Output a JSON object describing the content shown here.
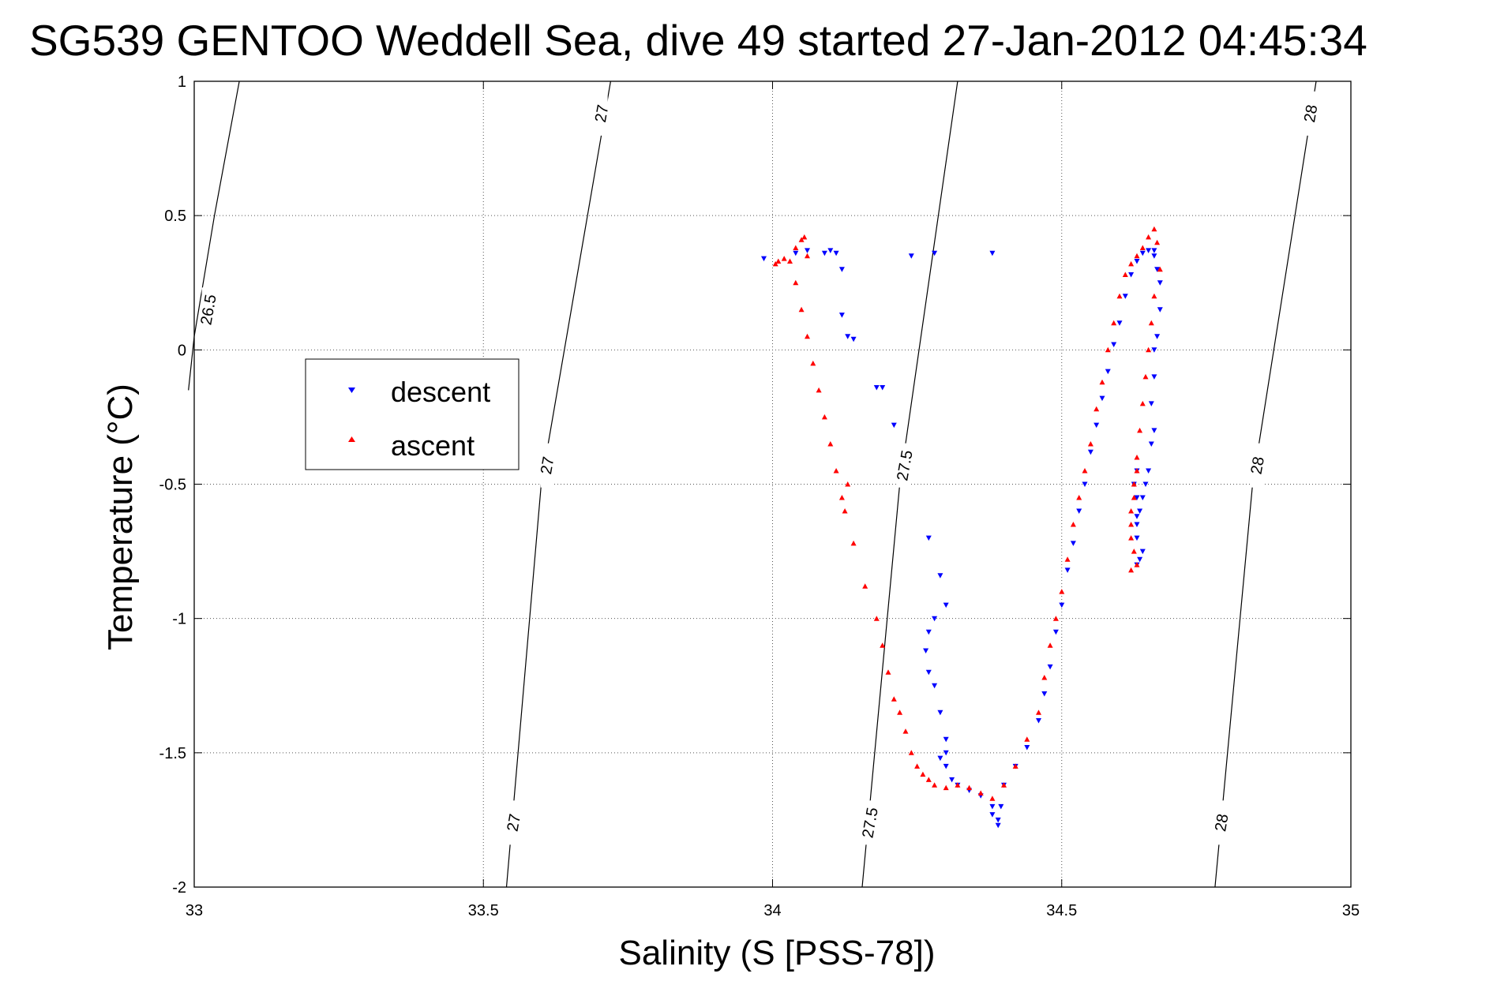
{
  "chart_data": {
    "type": "scatter",
    "title": "SG539 GENTOO Weddell Sea, dive 49 started 27-Jan-2012 04:45:34",
    "xlabel": "Salinity (S [PSS-78])",
    "ylabel": "Temperature (°C)",
    "xlim": [
      33,
      35
    ],
    "ylim": [
      -2,
      1
    ],
    "xticks": [
      33,
      33.5,
      34,
      34.5,
      35
    ],
    "yticks": [
      -2,
      -1.5,
      -1,
      -0.5,
      0,
      0.5,
      1
    ],
    "xtick_labels": [
      "33",
      "33.5",
      "34",
      "34.5",
      "35"
    ],
    "ytick_labels": [
      "-2",
      "-1.5",
      "-1",
      "-0.5",
      "0",
      "0.5",
      "1"
    ],
    "grid": true,
    "legend_position": "left-center",
    "contours": [
      {
        "label": "26.5",
        "points": [
          [
            33.078,
            1.0
          ],
          [
            33.035,
            0.5
          ],
          [
            33.0,
            0.05
          ],
          [
            32.99,
            -0.15
          ]
        ],
        "label_at": [
          [
            33.024,
            0.15
          ]
        ]
      },
      {
        "label": "27",
        "points": [
          [
            33.72,
            1.0
          ],
          [
            33.6,
            -0.5
          ],
          [
            33.54,
            -2.0
          ]
        ],
        "label_at": [
          [
            33.704,
            0.88
          ],
          [
            33.61,
            -0.43
          ],
          [
            33.552,
            -1.76
          ]
        ]
      },
      {
        "label": "27.5",
        "points": [
          [
            34.32,
            1.0
          ],
          [
            34.22,
            -0.5
          ],
          [
            34.155,
            -2.0
          ]
        ],
        "label_at": [
          [
            34.228,
            -0.43
          ],
          [
            34.168,
            -1.76
          ]
        ]
      },
      {
        "label": "28",
        "points": [
          [
            34.94,
            1.0
          ],
          [
            34.83,
            -0.5
          ],
          [
            34.765,
            -2.0
          ]
        ],
        "label_at": [
          [
            34.93,
            0.88
          ],
          [
            34.838,
            -0.43
          ],
          [
            34.776,
            -1.76
          ]
        ]
      }
    ],
    "series": [
      {
        "name": "descent",
        "color": "#0000ff",
        "marker": "triangle-down",
        "x": [
          33.985,
          34.04,
          34.06,
          34.09,
          34.1,
          34.11,
          34.12,
          34.13,
          34.19,
          34.24,
          34.28,
          34.38,
          34.12,
          34.14,
          34.18,
          34.21,
          34.27,
          34.29,
          34.3,
          34.28,
          34.27,
          34.265,
          34.27,
          34.28,
          34.29,
          34.3,
          34.3,
          34.29,
          34.3,
          34.31,
          34.32,
          34.34,
          34.36,
          34.38,
          34.38,
          34.39,
          34.39,
          34.395,
          34.4,
          34.42,
          34.44,
          34.46,
          34.47,
          34.48,
          34.49,
          34.5,
          34.51,
          34.52,
          34.53,
          34.54,
          34.55,
          34.56,
          34.57,
          34.58,
          34.59,
          34.6,
          34.61,
          34.62,
          34.63,
          34.64,
          34.65,
          34.66,
          34.66,
          34.665,
          34.67,
          34.67,
          34.665,
          34.66,
          34.66,
          34.655,
          34.66,
          34.655,
          34.65,
          34.645,
          34.64,
          34.635,
          34.63,
          34.63,
          34.64,
          34.635,
          34.63,
          34.63,
          34.63,
          34.625,
          34.63
        ],
        "y": [
          0.34,
          0.36,
          0.37,
          0.36,
          0.37,
          0.36,
          0.13,
          0.05,
          -0.14,
          0.35,
          0.36,
          0.36,
          0.3,
          0.04,
          -0.14,
          -0.28,
          -0.7,
          -0.84,
          -0.95,
          -1.0,
          -1.05,
          -1.12,
          -1.2,
          -1.25,
          -1.35,
          -1.45,
          -1.5,
          -1.52,
          -1.55,
          -1.6,
          -1.62,
          -1.64,
          -1.66,
          -1.7,
          -1.73,
          -1.75,
          -1.77,
          -1.7,
          -1.62,
          -1.55,
          -1.48,
          -1.38,
          -1.28,
          -1.18,
          -1.05,
          -0.95,
          -0.82,
          -0.72,
          -0.6,
          -0.5,
          -0.38,
          -0.28,
          -0.18,
          -0.08,
          0.02,
          0.1,
          0.2,
          0.28,
          0.33,
          0.36,
          0.37,
          0.37,
          0.35,
          0.3,
          0.25,
          0.15,
          0.05,
          0.0,
          -0.1,
          -0.2,
          -0.3,
          -0.35,
          -0.45,
          -0.5,
          -0.55,
          -0.6,
          -0.65,
          -0.7,
          -0.75,
          -0.78,
          -0.8,
          -0.62,
          -0.55,
          -0.5,
          -0.45
        ]
      },
      {
        "name": "ascent",
        "color": "#ff0000",
        "marker": "triangle-up",
        "x": [
          34.005,
          34.01,
          34.02,
          34.03,
          34.04,
          34.05,
          34.055,
          34.06,
          34.04,
          34.05,
          34.06,
          34.07,
          34.08,
          34.09,
          34.1,
          34.11,
          34.12,
          34.125,
          34.13,
          34.14,
          34.16,
          34.18,
          34.19,
          34.2,
          34.21,
          34.22,
          34.23,
          34.24,
          34.25,
          34.26,
          34.27,
          34.28,
          34.3,
          34.32,
          34.34,
          34.36,
          34.38,
          34.4,
          34.42,
          34.44,
          34.46,
          34.47,
          34.48,
          34.49,
          34.5,
          34.51,
          34.52,
          34.53,
          34.54,
          34.55,
          34.56,
          34.57,
          34.58,
          34.59,
          34.6,
          34.61,
          34.62,
          34.63,
          34.64,
          34.65,
          34.66,
          34.665,
          34.67,
          34.66,
          34.655,
          34.65,
          34.645,
          34.64,
          34.635,
          34.63,
          34.625,
          34.62,
          34.62,
          34.625,
          34.63,
          34.62,
          34.62,
          34.625,
          34.63
        ],
        "y": [
          0.32,
          0.33,
          0.34,
          0.33,
          0.38,
          0.41,
          0.42,
          0.35,
          0.25,
          0.15,
          0.05,
          -0.05,
          -0.15,
          -0.25,
          -0.35,
          -0.45,
          -0.55,
          -0.6,
          -0.5,
          -0.72,
          -0.88,
          -1.0,
          -1.1,
          -1.2,
          -1.3,
          -1.35,
          -1.42,
          -1.5,
          -1.55,
          -1.58,
          -1.6,
          -1.62,
          -1.63,
          -1.62,
          -1.63,
          -1.65,
          -1.67,
          -1.62,
          -1.55,
          -1.45,
          -1.35,
          -1.22,
          -1.1,
          -1.0,
          -0.9,
          -0.78,
          -0.65,
          -0.55,
          -0.45,
          -0.35,
          -0.22,
          -0.12,
          0.0,
          0.1,
          0.2,
          0.28,
          0.32,
          0.35,
          0.38,
          0.42,
          0.45,
          0.4,
          0.3,
          0.2,
          0.1,
          0.0,
          -0.1,
          -0.2,
          -0.3,
          -0.4,
          -0.5,
          -0.6,
          -0.7,
          -0.75,
          -0.8,
          -0.82,
          -0.65,
          -0.55,
          -0.45
        ]
      }
    ]
  }
}
